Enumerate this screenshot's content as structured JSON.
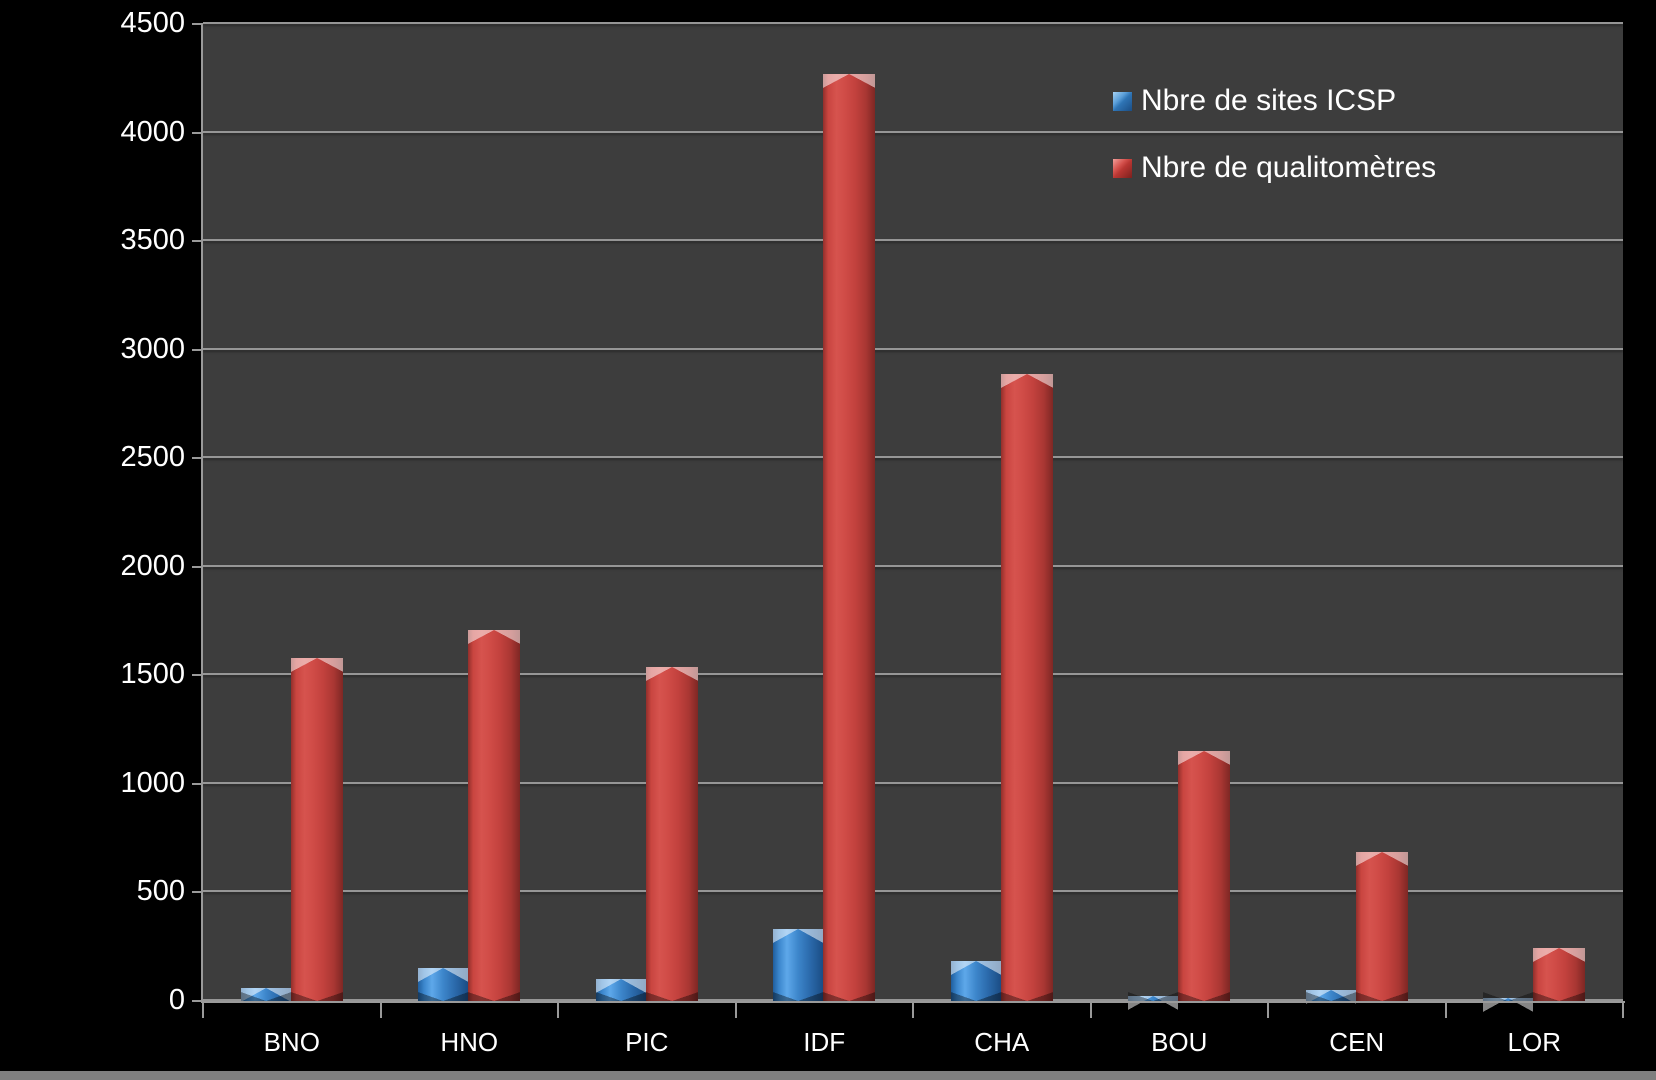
{
  "colors": {
    "background": "#000000",
    "plot_background": "#3d3d3d",
    "gridline": "#969696",
    "axis": "#9a9a9a",
    "text": "#ffffff",
    "series_blue": "#3b86cc",
    "series_red": "#c94540",
    "bottom_strip": "#7f7f7f"
  },
  "legend": {
    "item1": "Nbre de sites ICSP",
    "item2": "Nbre de qualitomètres"
  },
  "chart_data": {
    "type": "bar",
    "title": "",
    "xlabel": "",
    "ylabel": "",
    "categories": [
      "BNO",
      "HNO",
      "PIC",
      "IDF",
      "CHA",
      "BOU",
      "CEN",
      "LOR"
    ],
    "series": [
      {
        "name": "Nbre de sites ICSP",
        "color": "#3b86cc",
        "values": [
          60,
          150,
          100,
          330,
          185,
          25,
          50,
          15
        ]
      },
      {
        "name": "Nbre de qualitomètres",
        "color": "#c94540",
        "values": [
          1580,
          1710,
          1540,
          4270,
          2890,
          1150,
          685,
          245
        ]
      }
    ],
    "ylim": [
      0,
      4500
    ],
    "yticks": [
      0,
      500,
      1000,
      1500,
      2000,
      2500,
      3000,
      3500,
      4000,
      4500
    ],
    "grid": "horizontal",
    "legend_position": "top-right-inside"
  }
}
